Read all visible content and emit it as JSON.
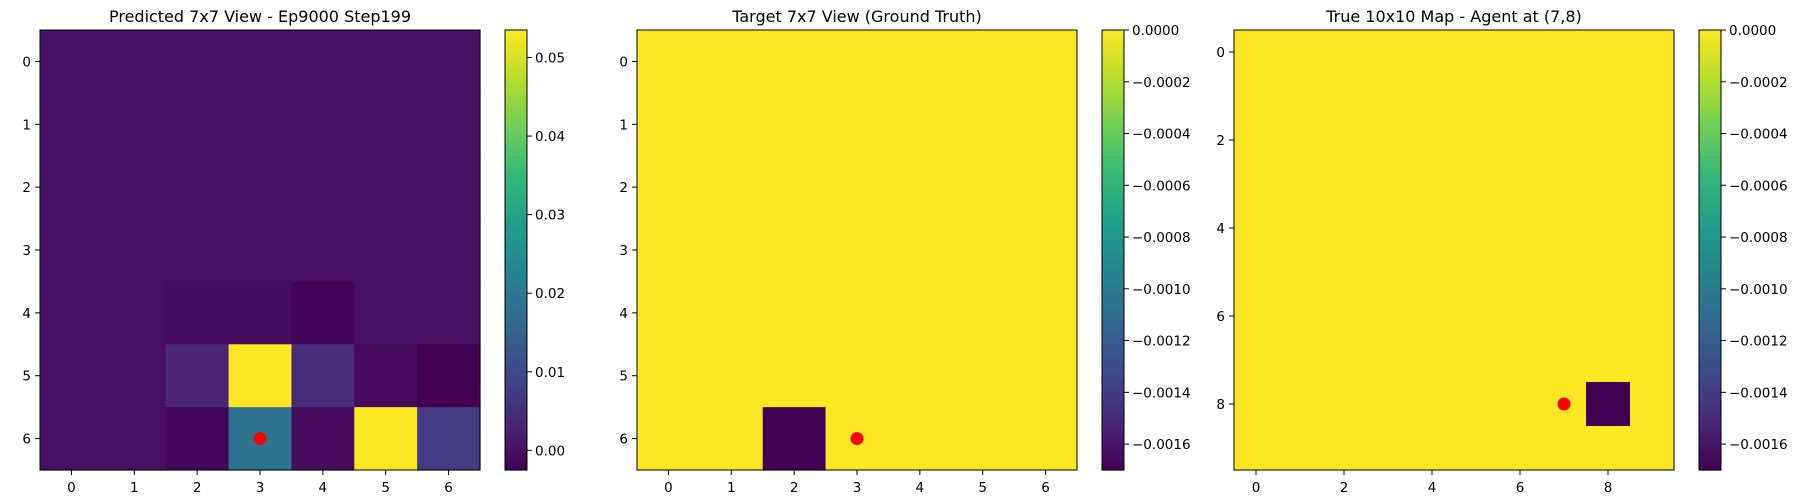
{
  "colormap": "viridis",
  "marker_color": "#ff0000",
  "chart_data": [
    {
      "type": "heatmap",
      "title": "Predicted 7x7 View - Ep9000 Step199",
      "rows": 7,
      "cols": 7,
      "x_ticks": [
        0,
        1,
        2,
        3,
        4,
        5,
        6
      ],
      "y_ticks": [
        0,
        1,
        2,
        3,
        4,
        5,
        6
      ],
      "values": [
        [
          0.0,
          0.0,
          0.0,
          0.0,
          0.0,
          0.0,
          0.0
        ],
        [
          0.0,
          0.0,
          0.0,
          0.0,
          0.0,
          0.0,
          0.0
        ],
        [
          0.0,
          0.0,
          0.0,
          0.0,
          0.0,
          0.0,
          0.0
        ],
        [
          0.0,
          0.0,
          0.0,
          0.0,
          0.0,
          0.0,
          0.0
        ],
        [
          0.0,
          0.0,
          -0.0006,
          -0.0006,
          -0.002,
          0.0,
          0.0
        ],
        [
          0.0,
          0.0,
          0.0035,
          0.0535,
          0.0045,
          -0.0008,
          -0.0025
        ],
        [
          0.0,
          0.0,
          -0.0012,
          0.0185,
          -0.0008,
          0.0535,
          0.007
        ]
      ],
      "vmin": -0.0025,
      "vmax": 0.0535,
      "colorbar_ticks": [
        0.0,
        0.01,
        0.02,
        0.03,
        0.04,
        0.05
      ],
      "colorbar_labels": [
        "0.00",
        "0.01",
        "0.02",
        "0.03",
        "0.04",
        "0.05"
      ],
      "marker": {
        "x": 3,
        "y": 6
      }
    },
    {
      "type": "heatmap",
      "title": "Target 7x7 View (Ground Truth)",
      "rows": 7,
      "cols": 7,
      "x_ticks": [
        0,
        1,
        2,
        3,
        4,
        5,
        6
      ],
      "y_ticks": [
        0,
        1,
        2,
        3,
        4,
        5,
        6
      ],
      "values": [
        [
          0,
          0,
          0,
          0,
          0,
          0,
          0
        ],
        [
          0,
          0,
          0,
          0,
          0,
          0,
          0
        ],
        [
          0,
          0,
          0,
          0,
          0,
          0,
          0
        ],
        [
          0,
          0,
          0,
          0,
          0,
          0,
          0
        ],
        [
          0,
          0,
          0,
          0,
          0,
          0,
          0
        ],
        [
          0,
          0,
          0,
          0,
          0,
          0,
          0
        ],
        [
          0,
          0,
          -0.0017,
          0,
          0,
          0,
          0
        ]
      ],
      "vmin": -0.0017,
      "vmax": 0.0,
      "colorbar_ticks": [
        0.0,
        -0.0002,
        -0.0004,
        -0.0006,
        -0.0008,
        -0.001,
        -0.0012,
        -0.0014,
        -0.0016
      ],
      "colorbar_labels": [
        "0.0000",
        "−0.0002",
        "−0.0004",
        "−0.0006",
        "−0.0008",
        "−0.0010",
        "−0.0012",
        "−0.0014",
        "−0.0016"
      ],
      "marker": {
        "x": 3,
        "y": 6
      }
    },
    {
      "type": "heatmap",
      "title": "True 10x10 Map - Agent at (7,8)",
      "rows": 10,
      "cols": 10,
      "x_ticks": [
        0,
        2,
        4,
        6,
        8
      ],
      "y_ticks": [
        0,
        2,
        4,
        6,
        8
      ],
      "values": [
        [
          0,
          0,
          0,
          0,
          0,
          0,
          0,
          0,
          0,
          0
        ],
        [
          0,
          0,
          0,
          0,
          0,
          0,
          0,
          0,
          0,
          0
        ],
        [
          0,
          0,
          0,
          0,
          0,
          0,
          0,
          0,
          0,
          0
        ],
        [
          0,
          0,
          0,
          0,
          0,
          0,
          0,
          0,
          0,
          0
        ],
        [
          0,
          0,
          0,
          0,
          0,
          0,
          0,
          0,
          0,
          0
        ],
        [
          0,
          0,
          0,
          0,
          0,
          0,
          0,
          0,
          0,
          0
        ],
        [
          0,
          0,
          0,
          0,
          0,
          0,
          0,
          0,
          0,
          0
        ],
        [
          0,
          0,
          0,
          0,
          0,
          0,
          0,
          0,
          0,
          0
        ],
        [
          0,
          0,
          0,
          0,
          0,
          0,
          0,
          0,
          -0.0017,
          0
        ],
        [
          0,
          0,
          0,
          0,
          0,
          0,
          0,
          0,
          0,
          0
        ]
      ],
      "vmin": -0.0017,
      "vmax": 0.0,
      "colorbar_ticks": [
        0.0,
        -0.0002,
        -0.0004,
        -0.0006,
        -0.0008,
        -0.001,
        -0.0012,
        -0.0014,
        -0.0016
      ],
      "colorbar_labels": [
        "0.0000",
        "−0.0002",
        "−0.0004",
        "−0.0006",
        "−0.0008",
        "−0.0010",
        "−0.0012",
        "−0.0014",
        "−0.0016"
      ],
      "marker": {
        "x": 7,
        "y": 8
      }
    }
  ]
}
